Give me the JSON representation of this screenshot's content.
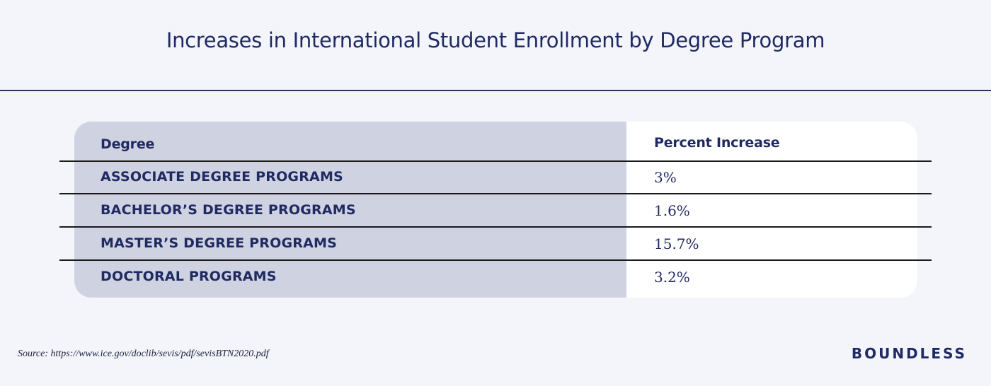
{
  "title": "Increases in International Student Enrollment by Degree Program",
  "table": {
    "headers": [
      "Degree",
      "Percent Increase"
    ],
    "rows": [
      {
        "label": "ASSOCIATE DEGREE PROGRAMS",
        "value": "3%"
      },
      {
        "label": "BACHELOR’S DEGREE PROGRAMS",
        "value": "1.6%"
      },
      {
        "label": "MASTER’S DEGREE PROGRAMS",
        "value": "15.7%"
      },
      {
        "label": "DOCTORAL PROGRAMS",
        "value": "3.2%"
      }
    ]
  },
  "source": "Source: https://www.ice.gov/doclib/sevis/pdf/sevisBTN2020.pdf",
  "brand": "BOUNDLESS",
  "colors": {
    "navy": "#1f2a63",
    "left_column_bg": "#cfd2e0",
    "page_bg": "#f4f5fa"
  },
  "chart_data": {
    "type": "table",
    "title": "Increases in International Student Enrollment by Degree Program",
    "columns": [
      "Degree",
      "Percent Increase"
    ],
    "categories": [
      "ASSOCIATE DEGREE PROGRAMS",
      "BACHELOR’S DEGREE PROGRAMS",
      "MASTER’S DEGREE PROGRAMS",
      "DOCTORAL PROGRAMS"
    ],
    "values": [
      3,
      1.6,
      15.7,
      3.2
    ],
    "value_labels": [
      "3%",
      "1.6%",
      "15.7%",
      "3.2%"
    ]
  }
}
